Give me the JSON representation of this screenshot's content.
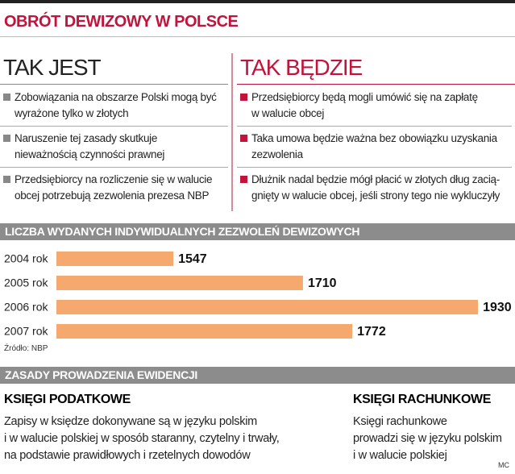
{
  "header": {
    "title": "OBRÓT DEWIZOWY W POLSCE"
  },
  "left": {
    "heading": "TAK JEST",
    "items": [
      [
        "Zobowiązania na obszarze Polski mogą być",
        "wyrażone tylko w złotych"
      ],
      [
        "Naruszenie tej zasady skutkuje",
        "nieważnością czynności prawnej"
      ],
      [
        "Przedsiębiorcy na rozliczenie się w walucie",
        "obcej potrzebują zezwolenia prezesa NBP"
      ]
    ]
  },
  "right": {
    "heading": "TAK BĘDZIE",
    "items": [
      [
        "Przedsiębiorcy będą mogli umówić się na zapłatę",
        "w walucie obcej"
      ],
      [
        "Taka umowa będzie ważna bez obowiązku uzyskania",
        "zezwolenia"
      ],
      [
        "Dłużnik nadal będzie mógł płacić w złotych dług zacią-",
        "gnięty w walucie obcej, jeśli strony tego nie wykluczyły"
      ]
    ]
  },
  "chart_data": {
    "type": "bar",
    "orientation": "horizontal",
    "title": "LICZBA WYDANYCH INDYWIDUALNYCH ZEZWOLEŃ DEWIZOWYCH",
    "categories": [
      "2004 rok",
      "2005 rok",
      "2006 rok",
      "2007 rok"
    ],
    "values": [
      1547,
      1710,
      1930,
      1772
    ],
    "color": "#f5a96e",
    "xlim": [
      1400,
      1935
    ],
    "source": "Źródło: NBP"
  },
  "records": {
    "title": "ZASADY PROWADZENIA EWIDENCJI",
    "columns": [
      {
        "heading": "KSIĘGI PODATKOWE",
        "lines": [
          "Zapisy w księdze dokonywane są w języku polskim",
          "i w walucie polskiej w sposób staranny, czytelny i trwały,",
          "na podstawie prawidłowych i rzetelnych dowodów"
        ]
      },
      {
        "heading": "KSIĘGI RACHUNKOWE",
        "lines": [
          "Księgi rachunkowe",
          "prowadzi się w języku polskim",
          "i w walucie polskiej"
        ]
      }
    ]
  },
  "credit": "MC"
}
